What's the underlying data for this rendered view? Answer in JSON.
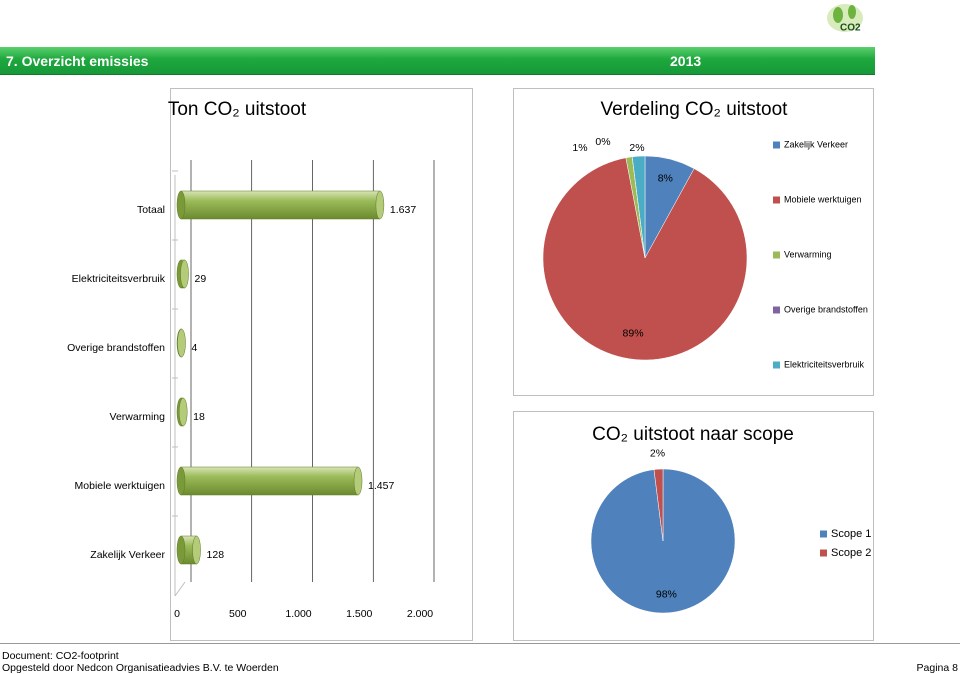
{
  "header": {
    "title": "7. Overzicht emissies",
    "year": "2013",
    "logo_text": "CO2"
  },
  "footer": {
    "document": "Document: CO2-footprint",
    "author": "Opgesteld door Nedcon Organisatieadvies B.V. te Woerden",
    "page": "Pagina 8"
  },
  "chart_data": [
    {
      "type": "hbar",
      "title": "Ton CO₂ uitstoot",
      "categories": [
        "Totaal",
        "Elektriciteitsverbruik",
        "Overige brandstoffen",
        "Verwarming",
        "Mobiele werktuigen",
        "Zakelijk Verkeer"
      ],
      "values": [
        1637,
        29,
        4,
        18,
        1457,
        128
      ],
      "value_labels": [
        "1.637",
        "29",
        "4",
        "18",
        "1.457",
        "128"
      ],
      "color": "#9bbb59",
      "xlim": [
        0,
        2000
      ],
      "xticks": [
        0,
        500,
        {
          "value": 1000,
          "label": "1.000"
        },
        {
          "value": 1500,
          "label": "1.500"
        },
        {
          "value": 2000,
          "label": "2.000"
        }
      ],
      "grid": true
    },
    {
      "type": "pie",
      "title": "Verdeling CO₂ uitstoot",
      "categories": [
        "Zakelijk Verkeer",
        "Mobiele werktuigen",
        "Verwarming",
        "Overige brandstoffen",
        "Elektriciteitsverbruik"
      ],
      "values": [
        8,
        89,
        1,
        0,
        2
      ],
      "value_labels": [
        "8%",
        "89%",
        "1%",
        "0%",
        "2%"
      ],
      "colors": [
        "#4f81bd",
        "#c0504d",
        "#9bbb59",
        "#8064a2",
        "#4bacc6"
      ],
      "legend": "right"
    },
    {
      "type": "pie",
      "title": "CO₂ uitstoot naar scope",
      "categories": [
        "Scope 1",
        "Scope 2"
      ],
      "values": [
        98,
        2
      ],
      "value_labels": [
        "98%",
        "2%"
      ],
      "colors": [
        "#4f81bd",
        "#c0504d"
      ],
      "legend": "right"
    }
  ]
}
